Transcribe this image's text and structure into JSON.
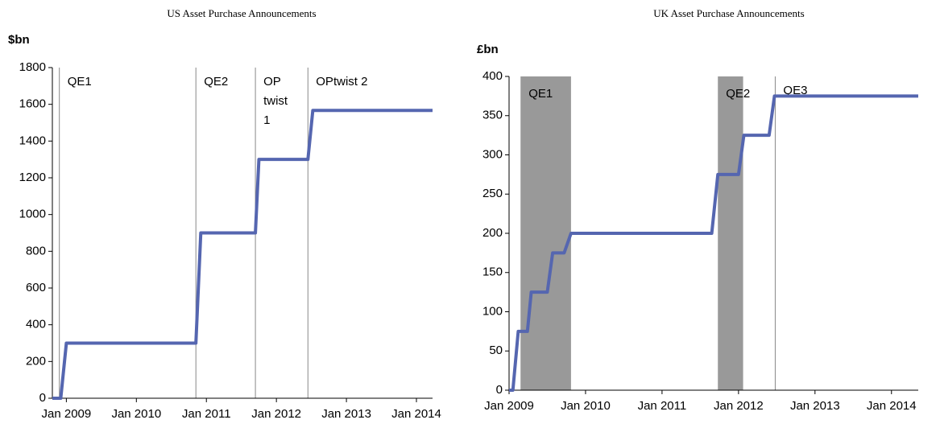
{
  "chart_data": [
    {
      "type": "line",
      "title": "US Asset Purchase Announcements",
      "y_label": "$bn",
      "color": "#5566b0",
      "x": [
        2008.8,
        2008.92,
        2009.0,
        2010.85,
        2010.92,
        2011.7,
        2011.75,
        2012.45,
        2012.52,
        2014.23
      ],
      "values": [
        0,
        0,
        300,
        300,
        900,
        900,
        1300,
        1300,
        1567,
        1567
      ],
      "xlim": [
        2008.8,
        2014.23
      ],
      "ylim": [
        0,
        1800
      ],
      "yticks": [
        0,
        200,
        400,
        600,
        800,
        1000,
        1200,
        1400,
        1600,
        1800
      ],
      "xticks": [
        {
          "value": 2009,
          "label": "Jan 2009"
        },
        {
          "value": 2010,
          "label": "Jan 2010"
        },
        {
          "value": 2011,
          "label": "Jan 2011"
        },
        {
          "value": 2012,
          "label": "Jan 2012"
        },
        {
          "value": 2013,
          "label": "Jan 2013"
        },
        {
          "value": 2014,
          "label": "Jan 2014"
        }
      ],
      "annotations": [
        {
          "x": 2008.9,
          "label": [
            "QE1"
          ]
        },
        {
          "x": 2010.85,
          "label": [
            "QE2"
          ]
        },
        {
          "x": 2011.7,
          "label": [
            "OP",
            "twist",
            "1"
          ]
        },
        {
          "x": 2012.45,
          "label": [
            "OPtwist  2"
          ]
        }
      ]
    },
    {
      "type": "line",
      "title": "UK Asset Purchase Announcements",
      "y_label": "£bn",
      "color": "#5566b0",
      "x": [
        2009.0,
        2009.05,
        2009.12,
        2009.24,
        2009.29,
        2009.5,
        2009.57,
        2009.72,
        2009.81,
        2011.65,
        2011.73,
        2012.0,
        2012.07,
        2012.4,
        2012.47,
        2014.35
      ],
      "values": [
        0,
        0,
        75,
        75,
        125,
        125,
        175,
        175,
        200,
        200,
        275,
        275,
        325,
        325,
        375,
        375
      ],
      "xlim": [
        2009.0,
        2014.35
      ],
      "ylim": [
        0,
        400
      ],
      "yticks": [
        0,
        50,
        100,
        150,
        200,
        250,
        300,
        350,
        400
      ],
      "xticks": [
        {
          "value": 2009,
          "label": "Jan 2009"
        },
        {
          "value": 2010,
          "label": "Jan 2010"
        },
        {
          "value": 2011,
          "label": "Jan 2011"
        },
        {
          "value": 2012,
          "label": "Jan 2012"
        },
        {
          "value": 2013,
          "label": "Jan 2013"
        },
        {
          "value": 2014,
          "label": "Jan 2014"
        }
      ],
      "shaded": [
        {
          "from": 2009.15,
          "to": 2009.81,
          "label": [
            "QE1"
          ]
        },
        {
          "from": 2011.73,
          "to": 2012.06,
          "label": [
            "QE2"
          ]
        }
      ],
      "annotations": [
        {
          "x": 2012.48,
          "label": [
            "QE3"
          ]
        }
      ]
    }
  ]
}
